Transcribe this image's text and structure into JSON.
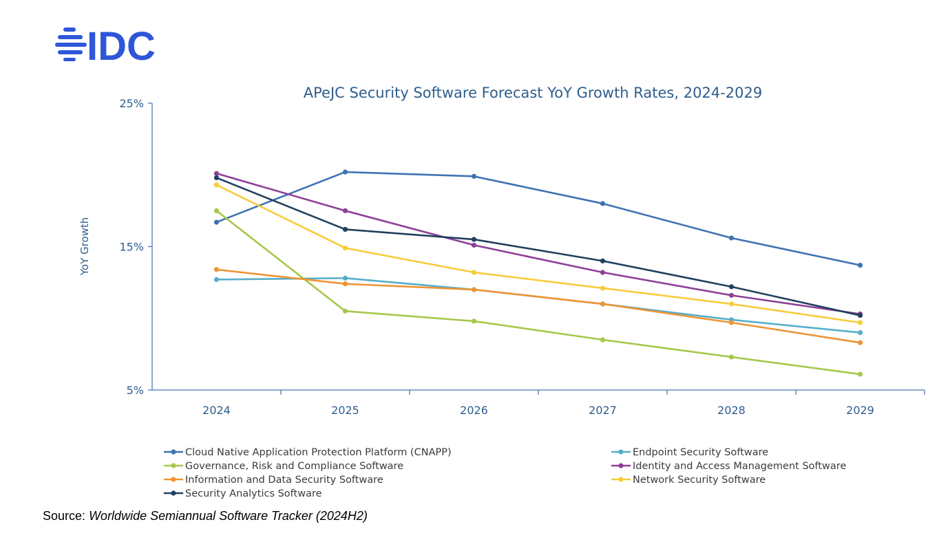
{
  "logo": {
    "text": "IDC",
    "color": "#2e56d8"
  },
  "source": {
    "label": "Source:",
    "title": "Worldwide Semiannual Software Tracker (2024H2)"
  },
  "chart_data": {
    "type": "line",
    "title": "APeJC Security Software Forecast YoY Growth Rates, 2024-2029",
    "xlabel": "",
    "ylabel": "YoY Growth",
    "ylim": [
      5,
      25
    ],
    "yticks": [
      5,
      15,
      25
    ],
    "ytick_labels": [
      "5%",
      "15%",
      "25%"
    ],
    "categories": [
      "2024",
      "2025",
      "2026",
      "2027",
      "2028",
      "2029"
    ],
    "grid": false,
    "legend_position": "bottom",
    "series": [
      {
        "name": "Cloud Native Application Protection Platform (CNAPP)",
        "color": "#3e72b2",
        "values": [
          16.7,
          20.2,
          19.9,
          18.0,
          15.6,
          13.7
        ]
      },
      {
        "name": "Endpoint Security Software",
        "color": "#56aecb",
        "values": [
          12.7,
          12.8,
          12.0,
          11.0,
          9.9,
          9.0
        ]
      },
      {
        "name": "Governance, Risk and Compliance Software",
        "color": "#a6c74a",
        "values": [
          17.5,
          10.5,
          9.8,
          8.5,
          7.3,
          6.1
        ]
      },
      {
        "name": "Identity and Access Management Software",
        "color": "#8e3f98",
        "values": [
          20.1,
          17.5,
          15.1,
          13.2,
          11.6,
          10.3
        ]
      },
      {
        "name": "Information and Data Security Software",
        "color": "#ee9433",
        "values": [
          13.4,
          12.4,
          12.0,
          11.0,
          9.7,
          8.3
        ]
      },
      {
        "name": "Network Security Software",
        "color": "#f6cc39",
        "values": [
          19.3,
          14.9,
          13.2,
          12.1,
          11.0,
          9.7
        ]
      },
      {
        "name": "Security Analytics Software",
        "color": "#20405e",
        "values": [
          19.8,
          16.2,
          15.5,
          14.0,
          12.2,
          10.2
        ]
      }
    ]
  }
}
